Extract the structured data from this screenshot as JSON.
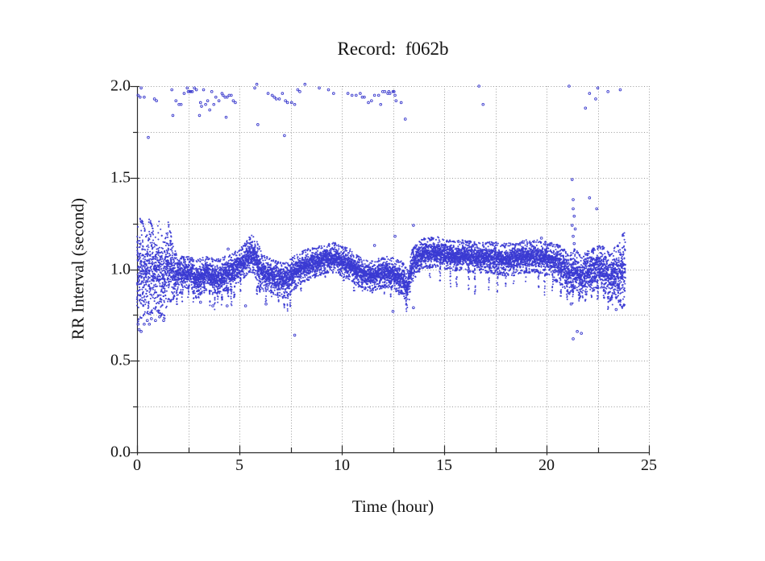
{
  "figure": {
    "background": "#ffffff",
    "title": "Record:  f062b"
  },
  "chart_data": {
    "type": "scatter",
    "title": "Record:  f062b",
    "xlabel": "Time (hour)",
    "ylabel": "RR Interval (second)",
    "xlim": [
      0,
      25
    ],
    "ylim": [
      0,
      2
    ],
    "x_major_ticks": [
      0,
      5,
      10,
      15,
      20,
      25
    ],
    "x_minor_ticks": [
      2.5,
      7.5,
      12.5,
      17.5,
      22.5
    ],
    "y_major_ticks": [
      0,
      0.5,
      1,
      1.5,
      2
    ],
    "y_minor_ticks": [
      0.25,
      0.75,
      1.25,
      1.75
    ],
    "x_tick_labels": [
      "0",
      "5",
      "10",
      "15",
      "20",
      "25"
    ],
    "y_tick_labels": [
      "0.0",
      "0.5",
      "1.0",
      "1.5",
      "2.0"
    ],
    "grid": "dotted gridlines at every major and minor tick",
    "legend": "none",
    "point_color": "#3b3bd2",
    "outlier_stroke_color": "#3a3acd",
    "grid_color": "#9a9a9a",
    "axis_color": "#2b2b2b",
    "description": "24-hour RR-interval tachogram: dense band of beat-to-beat intervals around 0.9-1.15 s with transient downward spikes, sparse artifact outliers near 1.9-2.0 s, and isolated low outliers.",
    "band_envelope": [
      [
        0.0,
        0.72,
        1.22
      ],
      [
        0.15,
        0.74,
        1.26
      ],
      [
        0.3,
        0.76,
        1.24
      ],
      [
        0.45,
        0.78,
        1.16
      ],
      [
        0.6,
        0.77,
        1.26
      ],
      [
        0.75,
        0.78,
        1.22
      ],
      [
        0.9,
        0.8,
        1.16
      ],
      [
        1.05,
        0.78,
        1.25
      ],
      [
        1.2,
        0.76,
        1.18
      ],
      [
        1.35,
        0.75,
        1.12
      ],
      [
        1.5,
        0.84,
        1.26
      ],
      [
        1.65,
        0.84,
        1.18
      ],
      [
        1.8,
        0.86,
        1.1
      ],
      [
        2.0,
        0.88,
        1.06
      ],
      [
        2.3,
        0.9,
        1.05
      ],
      [
        2.6,
        0.92,
        1.05
      ],
      [
        2.9,
        0.86,
        1.03
      ],
      [
        3.1,
        0.88,
        1.04
      ],
      [
        3.4,
        0.9,
        1.05
      ],
      [
        3.7,
        0.88,
        1.04
      ],
      [
        4.0,
        0.88,
        1.04
      ],
      [
        4.3,
        0.9,
        1.05
      ],
      [
        4.6,
        0.9,
        1.06
      ],
      [
        4.9,
        0.94,
        1.09
      ],
      [
        5.2,
        0.97,
        1.11
      ],
      [
        5.5,
        1.0,
        1.16
      ],
      [
        5.7,
        1.0,
        1.17
      ],
      [
        5.9,
        0.92,
        1.13
      ],
      [
        6.1,
        0.9,
        1.06
      ],
      [
        6.4,
        0.9,
        1.05
      ],
      [
        6.7,
        0.88,
        1.03
      ],
      [
        7.0,
        0.87,
        1.02
      ],
      [
        7.3,
        0.85,
        1.02
      ],
      [
        7.6,
        0.9,
        1.05
      ],
      [
        7.9,
        0.93,
        1.07
      ],
      [
        8.2,
        0.95,
        1.09
      ],
      [
        8.6,
        0.97,
        1.1
      ],
      [
        9.0,
        0.99,
        1.11
      ],
      [
        9.4,
        1.0,
        1.12
      ],
      [
        9.7,
        1.0,
        1.13
      ],
      [
        10.0,
        0.98,
        1.11
      ],
      [
        10.4,
        0.96,
        1.09
      ],
      [
        10.7,
        0.93,
        1.06
      ],
      [
        11.0,
        0.91,
        1.04
      ],
      [
        11.4,
        0.9,
        1.03
      ],
      [
        11.8,
        0.91,
        1.04
      ],
      [
        12.2,
        0.92,
        1.05
      ],
      [
        12.6,
        0.9,
        1.04
      ],
      [
        13.0,
        0.88,
        1.02
      ],
      [
        13.2,
        0.8,
        0.98
      ],
      [
        13.4,
        0.92,
        1.08
      ],
      [
        13.7,
        1.0,
        1.13
      ],
      [
        14.0,
        1.02,
        1.15
      ],
      [
        14.5,
        1.03,
        1.16
      ],
      [
        15.0,
        1.02,
        1.15
      ],
      [
        15.5,
        1.01,
        1.14
      ],
      [
        16.0,
        1.01,
        1.14
      ],
      [
        16.5,
        1.0,
        1.13
      ],
      [
        17.0,
        1.0,
        1.13
      ],
      [
        17.5,
        0.99,
        1.13
      ],
      [
        18.0,
        0.98,
        1.12
      ],
      [
        18.5,
        0.99,
        1.13
      ],
      [
        19.0,
        1.0,
        1.14
      ],
      [
        19.5,
        1.0,
        1.14
      ],
      [
        20.0,
        0.98,
        1.13
      ],
      [
        20.5,
        0.95,
        1.12
      ],
      [
        20.8,
        0.92,
        1.1
      ],
      [
        21.1,
        0.88,
        1.06
      ],
      [
        21.4,
        0.9,
        1.1
      ],
      [
        21.7,
        0.86,
        1.05
      ],
      [
        22.0,
        0.88,
        1.08
      ],
      [
        22.3,
        0.9,
        1.1
      ],
      [
        22.6,
        0.92,
        1.11
      ],
      [
        22.9,
        0.88,
        1.1
      ],
      [
        23.1,
        0.84,
        1.06
      ],
      [
        23.3,
        0.88,
        1.1
      ],
      [
        23.5,
        0.84,
        1.12
      ],
      [
        23.7,
        0.8,
        1.18
      ],
      [
        23.85,
        0.82,
        1.2
      ]
    ],
    "spikes": [
      [
        1.95,
        0.8
      ],
      [
        2.2,
        0.82
      ],
      [
        2.5,
        0.84
      ],
      [
        2.75,
        0.82
      ],
      [
        3.0,
        0.8
      ],
      [
        3.3,
        0.84
      ],
      [
        3.55,
        0.8
      ],
      [
        3.8,
        0.78
      ],
      [
        3.95,
        0.8
      ],
      [
        4.15,
        0.79
      ],
      [
        4.45,
        0.82
      ],
      [
        4.6,
        0.8
      ],
      [
        4.75,
        0.84
      ],
      [
        5.05,
        0.88
      ],
      [
        5.85,
        0.86
      ],
      [
        6.0,
        0.85
      ],
      [
        6.3,
        0.82
      ],
      [
        6.55,
        0.84
      ],
      [
        6.9,
        0.82
      ],
      [
        7.2,
        0.78
      ],
      [
        7.35,
        0.77
      ],
      [
        7.5,
        0.79
      ],
      [
        8.0,
        0.88
      ],
      [
        8.4,
        0.92
      ],
      [
        9.2,
        0.95
      ],
      [
        10.1,
        0.92
      ],
      [
        10.6,
        0.88
      ],
      [
        11.0,
        0.86
      ],
      [
        11.5,
        0.87
      ],
      [
        12.1,
        0.86
      ],
      [
        12.4,
        0.85
      ],
      [
        12.8,
        0.86
      ],
      [
        13.15,
        0.75
      ],
      [
        14.3,
        0.95
      ],
      [
        14.8,
        0.93
      ],
      [
        15.3,
        0.9
      ],
      [
        15.6,
        0.88
      ],
      [
        16.2,
        0.88
      ],
      [
        16.5,
        0.86
      ],
      [
        17.2,
        0.88
      ],
      [
        17.6,
        0.87
      ],
      [
        18.0,
        0.9
      ],
      [
        18.4,
        0.9
      ],
      [
        19.0,
        0.93
      ],
      [
        19.6,
        0.9
      ],
      [
        19.9,
        0.86
      ],
      [
        20.3,
        0.88
      ],
      [
        20.7,
        0.84
      ],
      [
        21.0,
        0.82
      ],
      [
        21.3,
        0.8
      ],
      [
        21.6,
        0.8
      ],
      [
        21.9,
        0.82
      ],
      [
        22.2,
        0.84
      ],
      [
        22.5,
        0.82
      ],
      [
        22.8,
        0.8
      ],
      [
        23.0,
        0.78
      ],
      [
        23.2,
        0.8
      ],
      [
        23.6,
        0.8
      ]
    ],
    "outliers": [
      [
        0.05,
        1.95
      ],
      [
        0.15,
        1.94
      ],
      [
        0.2,
        1.99
      ],
      [
        0.35,
        1.94
      ],
      [
        0.55,
        1.72
      ],
      [
        0.85,
        1.93
      ],
      [
        0.95,
        1.92
      ],
      [
        1.7,
        1.98
      ],
      [
        1.75,
        1.84
      ],
      [
        1.9,
        1.92
      ],
      [
        2.05,
        1.9
      ],
      [
        2.15,
        1.9
      ],
      [
        2.3,
        1.96
      ],
      [
        2.45,
        1.99
      ],
      [
        2.5,
        1.97
      ],
      [
        2.57,
        1.97
      ],
      [
        2.63,
        1.97
      ],
      [
        2.7,
        1.97
      ],
      [
        2.8,
        1.99
      ],
      [
        2.9,
        1.98
      ],
      [
        3.05,
        1.84
      ],
      [
        3.1,
        1.91
      ],
      [
        3.15,
        1.89
      ],
      [
        3.25,
        1.98
      ],
      [
        3.35,
        1.9
      ],
      [
        3.45,
        1.92
      ],
      [
        3.55,
        1.87
      ],
      [
        3.65,
        1.97
      ],
      [
        3.75,
        1.9
      ],
      [
        3.85,
        1.94
      ],
      [
        4.0,
        1.92
      ],
      [
        4.15,
        1.96
      ],
      [
        4.2,
        1.95
      ],
      [
        4.3,
        1.94
      ],
      [
        4.35,
        1.83
      ],
      [
        4.4,
        1.94
      ],
      [
        4.5,
        1.95
      ],
      [
        4.6,
        1.95
      ],
      [
        4.7,
        1.92
      ],
      [
        4.8,
        1.91
      ],
      [
        5.75,
        1.99
      ],
      [
        5.85,
        2.01
      ],
      [
        5.9,
        1.79
      ],
      [
        6.4,
        1.96
      ],
      [
        6.6,
        1.95
      ],
      [
        6.7,
        1.94
      ],
      [
        6.8,
        1.93
      ],
      [
        6.95,
        1.93
      ],
      [
        7.1,
        1.96
      ],
      [
        7.2,
        1.73
      ],
      [
        7.25,
        1.92
      ],
      [
        7.35,
        1.91
      ],
      [
        7.55,
        1.91
      ],
      [
        7.7,
        1.9
      ],
      [
        7.85,
        1.98
      ],
      [
        7.95,
        1.97
      ],
      [
        8.2,
        2.01
      ],
      [
        8.9,
        1.99
      ],
      [
        9.35,
        1.98
      ],
      [
        9.6,
        1.96
      ],
      [
        10.3,
        1.96
      ],
      [
        10.5,
        1.95
      ],
      [
        10.7,
        1.95
      ],
      [
        10.9,
        1.96
      ],
      [
        11.0,
        1.94
      ],
      [
        11.1,
        1.94
      ],
      [
        11.3,
        1.91
      ],
      [
        11.45,
        1.92
      ],
      [
        11.6,
        1.95
      ],
      [
        11.8,
        1.95
      ],
      [
        11.9,
        1.9
      ],
      [
        12.0,
        1.97
      ],
      [
        12.1,
        1.97
      ],
      [
        12.25,
        1.96
      ],
      [
        12.3,
        1.97
      ],
      [
        12.35,
        1.96
      ],
      [
        12.5,
        1.97
      ],
      [
        12.55,
        1.97
      ],
      [
        12.6,
        1.95
      ],
      [
        12.65,
        1.92
      ],
      [
        12.9,
        1.91
      ],
      [
        13.1,
        1.82
      ],
      [
        16.7,
        2.0
      ],
      [
        16.9,
        1.9
      ],
      [
        21.1,
        2.0
      ],
      [
        21.9,
        1.88
      ],
      [
        22.1,
        1.96
      ],
      [
        22.4,
        1.93
      ],
      [
        22.5,
        1.99
      ],
      [
        23.0,
        1.97
      ],
      [
        23.6,
        1.98
      ],
      [
        11.6,
        1.13
      ],
      [
        12.6,
        1.18
      ],
      [
        13.5,
        1.24
      ],
      [
        19.75,
        1.17
      ],
      [
        21.25,
        1.49
      ],
      [
        21.3,
        1.38
      ],
      [
        21.3,
        1.33
      ],
      [
        21.35,
        1.29
      ],
      [
        21.25,
        1.24
      ],
      [
        21.4,
        1.22
      ],
      [
        21.3,
        1.18
      ],
      [
        21.35,
        1.14
      ],
      [
        22.1,
        1.39
      ],
      [
        22.45,
        1.33
      ],
      [
        4.45,
        1.11
      ],
      [
        0.05,
        0.7
      ],
      [
        0.1,
        0.67
      ],
      [
        0.2,
        0.66
      ],
      [
        0.35,
        0.7
      ],
      [
        0.5,
        0.72
      ],
      [
        0.6,
        0.7
      ],
      [
        0.7,
        0.73
      ],
      [
        0.9,
        0.72
      ],
      [
        1.1,
        0.74
      ],
      [
        1.3,
        0.72
      ],
      [
        3.1,
        0.82
      ],
      [
        3.7,
        0.8
      ],
      [
        4.4,
        0.8
      ],
      [
        5.3,
        0.8
      ],
      [
        6.3,
        0.81
      ],
      [
        7.7,
        0.64
      ],
      [
        12.5,
        0.77
      ],
      [
        13.5,
        0.79
      ],
      [
        21.2,
        0.81
      ],
      [
        21.5,
        0.66
      ],
      [
        21.3,
        0.62
      ],
      [
        21.7,
        0.65
      ],
      [
        23.4,
        0.78
      ]
    ]
  }
}
